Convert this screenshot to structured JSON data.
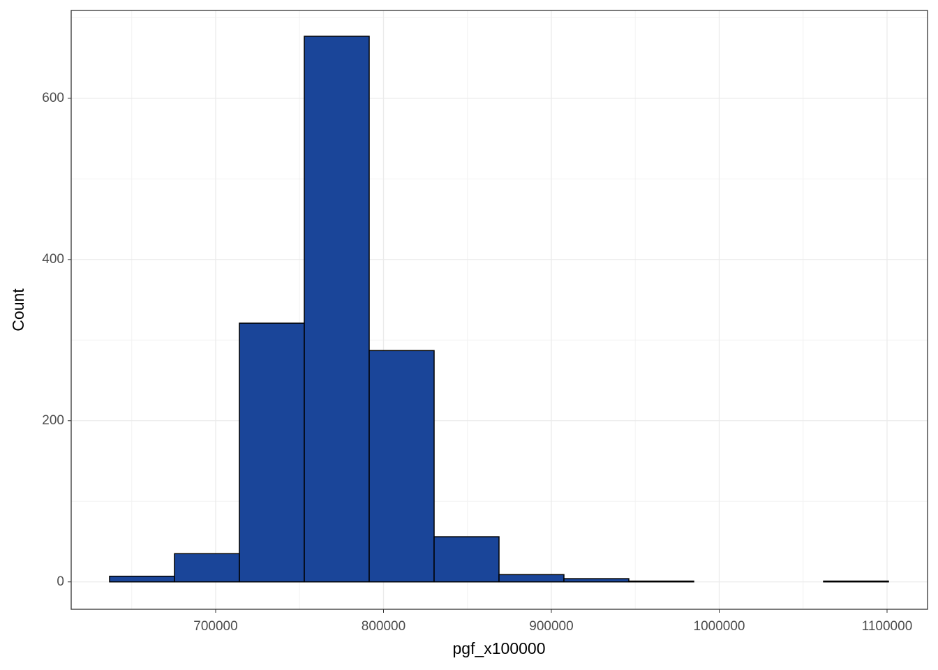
{
  "chart_data": {
    "type": "histogram",
    "x_label": "pgf_x100000",
    "y_label": "Count",
    "bins": [
      636800,
      675470,
      714140,
      752810,
      791480,
      830150,
      868820,
      907490,
      946160,
      984830,
      1023500,
      1062170,
      1100840
    ],
    "values": [
      7,
      35,
      321,
      677,
      287,
      56,
      9,
      4,
      1,
      0,
      0,
      1
    ],
    "color": "#1a4599",
    "xlim": [
      613930,
      1124120
    ],
    "ylim": [
      -34,
      709
    ],
    "xticks": [
      700000,
      800000,
      900000,
      1000000,
      1100000
    ],
    "yticks": [
      0,
      200,
      400,
      600
    ],
    "grid": true
  }
}
